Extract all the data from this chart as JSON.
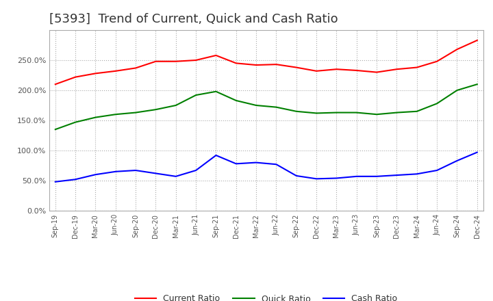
{
  "title": "[5393]  Trend of Current, Quick and Cash Ratio",
  "x_labels": [
    "Sep-19",
    "Dec-19",
    "Mar-20",
    "Jun-20",
    "Sep-20",
    "Dec-20",
    "Mar-21",
    "Jun-21",
    "Sep-21",
    "Dec-21",
    "Mar-22",
    "Jun-22",
    "Sep-22",
    "Dec-22",
    "Mar-23",
    "Jun-23",
    "Sep-23",
    "Dec-23",
    "Mar-24",
    "Jun-24",
    "Sep-24",
    "Dec-24"
  ],
  "current_ratio": [
    210,
    222,
    228,
    232,
    237,
    248,
    248,
    250,
    258,
    245,
    242,
    243,
    238,
    232,
    235,
    233,
    230,
    235,
    238,
    248,
    268,
    283
  ],
  "quick_ratio": [
    135,
    147,
    155,
    160,
    163,
    168,
    175,
    192,
    198,
    183,
    175,
    172,
    165,
    162,
    163,
    163,
    160,
    163,
    165,
    178,
    200,
    210
  ],
  "cash_ratio": [
    48,
    52,
    60,
    65,
    67,
    62,
    57,
    67,
    92,
    78,
    80,
    77,
    58,
    53,
    54,
    57,
    57,
    59,
    61,
    67,
    83,
    97
  ],
  "ylim": [
    0,
    300
  ],
  "yticks": [
    0,
    50,
    100,
    150,
    200,
    250
  ],
  "current_color": "#ff0000",
  "quick_color": "#008000",
  "cash_color": "#0000ff",
  "background_color": "#ffffff",
  "title_fontsize": 13,
  "legend_labels": [
    "Current Ratio",
    "Quick Ratio",
    "Cash Ratio"
  ]
}
